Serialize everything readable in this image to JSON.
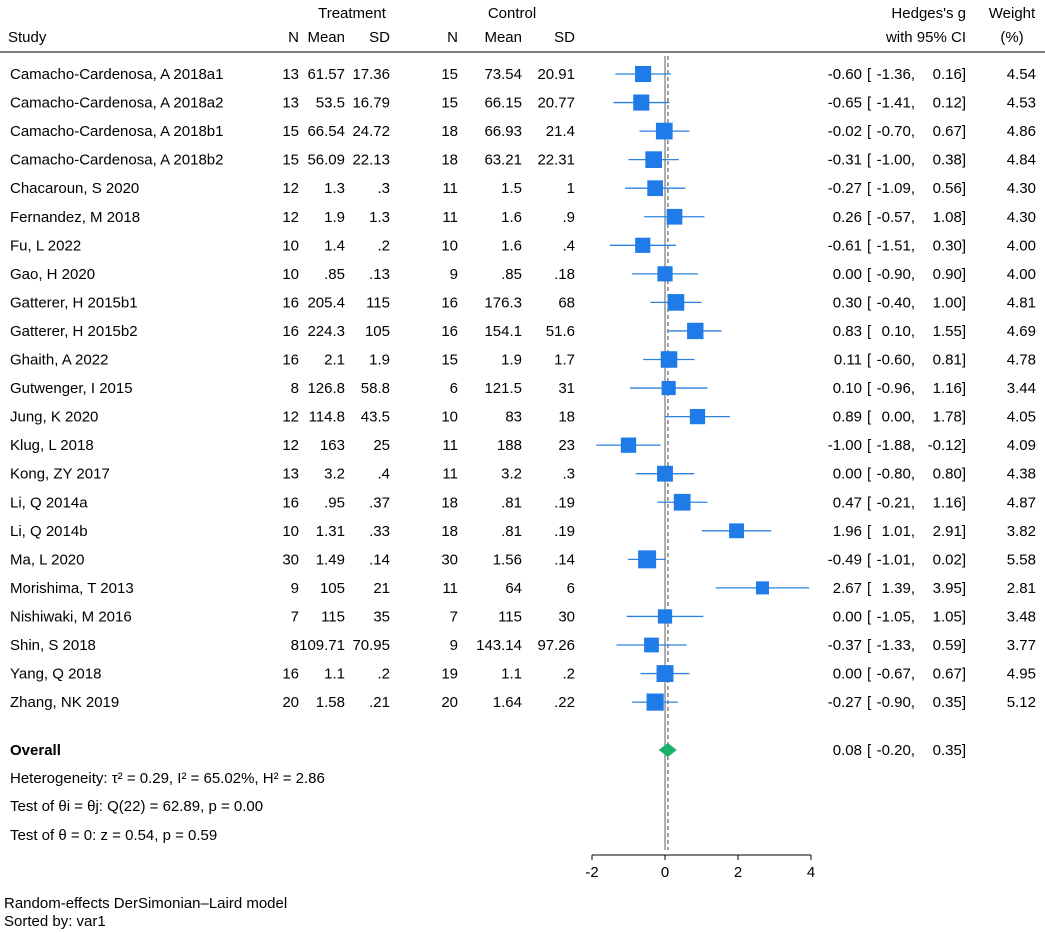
{
  "chart_data": {
    "type": "forest",
    "headers": {
      "group_treatment": "Treatment",
      "group_control": "Control",
      "study": "Study",
      "n": "N",
      "mean": "Mean",
      "sd": "SD",
      "effect_line1": "Hedges's g",
      "effect_line2": "with 95% CI",
      "weight_line1": "Weight",
      "weight_line2": "(%)"
    },
    "studies": [
      {
        "study": "Camacho-Cardenosa, A 2018a1",
        "tn": "13",
        "tmean": "61.57",
        "tsd": "17.36",
        "cn": "15",
        "cmean": "73.54",
        "csd": "20.91",
        "g": -0.6,
        "lo": -1.36,
        "hi": 0.16,
        "weight": "4.54",
        "g_txt": "-0.60",
        "lo_txt": "-1.36,",
        "hi_txt": "0.16]"
      },
      {
        "study": "Camacho-Cardenosa, A 2018a2",
        "tn": "13",
        "tmean": "53.5",
        "tsd": "16.79",
        "cn": "15",
        "cmean": "66.15",
        "csd": "20.77",
        "g": -0.65,
        "lo": -1.41,
        "hi": 0.12,
        "weight": "4.53",
        "g_txt": "-0.65",
        "lo_txt": "-1.41,",
        "hi_txt": "0.12]"
      },
      {
        "study": "Camacho-Cardenosa, A 2018b1",
        "tn": "15",
        "tmean": "66.54",
        "tsd": "24.72",
        "cn": "18",
        "cmean": "66.93",
        "csd": "21.4",
        "g": -0.02,
        "lo": -0.7,
        "hi": 0.67,
        "weight": "4.86",
        "g_txt": "-0.02",
        "lo_txt": "-0.70,",
        "hi_txt": "0.67]"
      },
      {
        "study": "Camacho-Cardenosa, A 2018b2",
        "tn": "15",
        "tmean": "56.09",
        "tsd": "22.13",
        "cn": "18",
        "cmean": "63.21",
        "csd": "22.31",
        "g": -0.31,
        "lo": -1.0,
        "hi": 0.38,
        "weight": "4.84",
        "g_txt": "-0.31",
        "lo_txt": "-1.00,",
        "hi_txt": "0.38]"
      },
      {
        "study": "Chacaroun, S 2020",
        "tn": "12",
        "tmean": "1.3",
        "tsd": ".3",
        "cn": "11",
        "cmean": "1.5",
        "csd": "1",
        "g": -0.27,
        "lo": -1.09,
        "hi": 0.56,
        "weight": "4.30",
        "g_txt": "-0.27",
        "lo_txt": "-1.09,",
        "hi_txt": "0.56]"
      },
      {
        "study": "Fernandez, M 2018",
        "tn": "12",
        "tmean": "1.9",
        "tsd": "1.3",
        "cn": "11",
        "cmean": "1.6",
        "csd": ".9",
        "g": 0.26,
        "lo": -0.57,
        "hi": 1.08,
        "weight": "4.30",
        "g_txt": "0.26",
        "lo_txt": "-0.57,",
        "hi_txt": "1.08]"
      },
      {
        "study": "Fu, L 2022",
        "tn": "10",
        "tmean": "1.4",
        "tsd": ".2",
        "cn": "10",
        "cmean": "1.6",
        "csd": ".4",
        "g": -0.61,
        "lo": -1.51,
        "hi": 0.3,
        "weight": "4.00",
        "g_txt": "-0.61",
        "lo_txt": "-1.51,",
        "hi_txt": "0.30]"
      },
      {
        "study": "Gao, H 2020",
        "tn": "10",
        "tmean": ".85",
        "tsd": ".13",
        "cn": "9",
        "cmean": ".85",
        "csd": ".18",
        "g": 0.0,
        "lo": -0.9,
        "hi": 0.9,
        "weight": "4.00",
        "g_txt": "0.00",
        "lo_txt": "-0.90,",
        "hi_txt": "0.90]"
      },
      {
        "study": "Gatterer, H 2015b1",
        "tn": "16",
        "tmean": "205.4",
        "tsd": "115",
        "cn": "16",
        "cmean": "176.3",
        "csd": "68",
        "g": 0.3,
        "lo": -0.4,
        "hi": 1.0,
        "weight": "4.81",
        "g_txt": "0.30",
        "lo_txt": "-0.40,",
        "hi_txt": "1.00]"
      },
      {
        "study": "Gatterer, H 2015b2",
        "tn": "16",
        "tmean": "224.3",
        "tsd": "105",
        "cn": "16",
        "cmean": "154.1",
        "csd": "51.6",
        "g": 0.83,
        "lo": 0.1,
        "hi": 1.55,
        "weight": "4.69",
        "g_txt": "0.83",
        "lo_txt": "0.10,",
        "hi_txt": "1.55]"
      },
      {
        "study": "Ghaith, A 2022",
        "tn": "16",
        "tmean": "2.1",
        "tsd": "1.9",
        "cn": "15",
        "cmean": "1.9",
        "csd": "1.7",
        "g": 0.11,
        "lo": -0.6,
        "hi": 0.81,
        "weight": "4.78",
        "g_txt": "0.11",
        "lo_txt": "-0.60,",
        "hi_txt": "0.81]"
      },
      {
        "study": "Gutwenger, I 2015",
        "tn": "8",
        "tmean": "126.8",
        "tsd": "58.8",
        "cn": "6",
        "cmean": "121.5",
        "csd": "31",
        "g": 0.1,
        "lo": -0.96,
        "hi": 1.16,
        "weight": "3.44",
        "g_txt": "0.10",
        "lo_txt": "-0.96,",
        "hi_txt": "1.16]"
      },
      {
        "study": "Jung, K 2020",
        "tn": "12",
        "tmean": "114.8",
        "tsd": "43.5",
        "cn": "10",
        "cmean": "83",
        "csd": "18",
        "g": 0.89,
        "lo": 0.0,
        "hi": 1.78,
        "weight": "4.05",
        "g_txt": "0.89",
        "lo_txt": "0.00,",
        "hi_txt": "1.78]"
      },
      {
        "study": "Klug, L 2018",
        "tn": "12",
        "tmean": "163",
        "tsd": "25",
        "cn": "11",
        "cmean": "188",
        "csd": "23",
        "g": -1.0,
        "lo": -1.88,
        "hi": -0.12,
        "weight": "4.09",
        "g_txt": "-1.00",
        "lo_txt": "-1.88,",
        "hi_txt": "-0.12]"
      },
      {
        "study": "Kong, ZY 2017",
        "tn": "13",
        "tmean": "3.2",
        "tsd": ".4",
        "cn": "11",
        "cmean": "3.2",
        "csd": ".3",
        "g": 0.0,
        "lo": -0.8,
        "hi": 0.8,
        "weight": "4.38",
        "g_txt": "0.00",
        "lo_txt": "-0.80,",
        "hi_txt": "0.80]"
      },
      {
        "study": "Li, Q 2014a",
        "tn": "16",
        "tmean": ".95",
        "tsd": ".37",
        "cn": "18",
        "cmean": ".81",
        "csd": ".19",
        "g": 0.47,
        "lo": -0.21,
        "hi": 1.16,
        "weight": "4.87",
        "g_txt": "0.47",
        "lo_txt": "-0.21,",
        "hi_txt": "1.16]"
      },
      {
        "study": "Li, Q 2014b",
        "tn": "10",
        "tmean": "1.31",
        "tsd": ".33",
        "cn": "18",
        "cmean": ".81",
        "csd": ".19",
        "g": 1.96,
        "lo": 1.01,
        "hi": 2.91,
        "weight": "3.82",
        "g_txt": "1.96",
        "lo_txt": "1.01,",
        "hi_txt": "2.91]"
      },
      {
        "study": "Ma, L 2020",
        "tn": "30",
        "tmean": "1.49",
        "tsd": ".14",
        "cn": "30",
        "cmean": "1.56",
        "csd": ".14",
        "g": -0.49,
        "lo": -1.01,
        "hi": 0.02,
        "weight": "5.58",
        "g_txt": "-0.49",
        "lo_txt": "-1.01,",
        "hi_txt": "0.02]"
      },
      {
        "study": "Morishima, T 2013",
        "tn": "9",
        "tmean": "105",
        "tsd": "21",
        "cn": "11",
        "cmean": "64",
        "csd": "6",
        "g": 2.67,
        "lo": 1.39,
        "hi": 3.95,
        "weight": "2.81",
        "g_txt": "2.67",
        "lo_txt": "1.39,",
        "hi_txt": "3.95]"
      },
      {
        "study": "Nishiwaki, M 2016",
        "tn": "7",
        "tmean": "115",
        "tsd": "35",
        "cn": "7",
        "cmean": "115",
        "csd": "30",
        "g": 0.0,
        "lo": -1.05,
        "hi": 1.05,
        "weight": "3.48",
        "g_txt": "0.00",
        "lo_txt": "-1.05,",
        "hi_txt": "1.05]"
      },
      {
        "study": "Shin, S 2018",
        "tn": "8",
        "tmean": "109.71",
        "tsd": "70.95",
        "cn": "9",
        "cmean": "143.14",
        "csd": "97.26",
        "g": -0.37,
        "lo": -1.33,
        "hi": 0.59,
        "weight": "3.77",
        "g_txt": "-0.37",
        "lo_txt": "-1.33,",
        "hi_txt": "0.59]"
      },
      {
        "study": "Yang, Q 2018",
        "tn": "16",
        "tmean": "1.1",
        "tsd": ".2",
        "cn": "19",
        "cmean": "1.1",
        "csd": ".2",
        "g": 0.0,
        "lo": -0.67,
        "hi": 0.67,
        "weight": "4.95",
        "g_txt": "0.00",
        "lo_txt": "-0.67,",
        "hi_txt": "0.67]"
      },
      {
        "study": "Zhang, NK 2019",
        "tn": "20",
        "tmean": "1.58",
        "tsd": ".21",
        "cn": "20",
        "cmean": "1.64",
        "csd": ".22",
        "g": -0.27,
        "lo": -0.9,
        "hi": 0.35,
        "weight": "5.12",
        "g_txt": "-0.27",
        "lo_txt": "-0.90,",
        "hi_txt": "0.35]"
      }
    ],
    "overall": {
      "label": "Overall",
      "g": 0.08,
      "lo": -0.2,
      "hi": 0.35,
      "g_txt": "0.08",
      "lo_txt": "-0.20,",
      "hi_txt": "0.35]"
    },
    "stats": {
      "heterogeneity": "Heterogeneity: τ² = 0.29, I² = 65.02%, H² = 2.86",
      "test_equal": "Test of θi = θj: Q(22) = 62.89, p = 0.00",
      "test_zero": "Test of θ = 0: z = 0.54, p = 0.59"
    },
    "x_axis": {
      "ticks": [
        -2,
        0,
        2,
        4
      ],
      "tick_labels": [
        "-2",
        "0",
        "2",
        "4"
      ],
      "xlim": [
        -2,
        4
      ]
    },
    "footnotes": [
      "Random-effects DerSimonian–Laird model",
      "Sorted by: var1"
    ],
    "colors": {
      "marker": "#1e7be8",
      "ci_line": "#2b83e0",
      "diamond": "#17b26a",
      "null_line": "#7a7a7a",
      "overall_line": "#444444"
    }
  }
}
